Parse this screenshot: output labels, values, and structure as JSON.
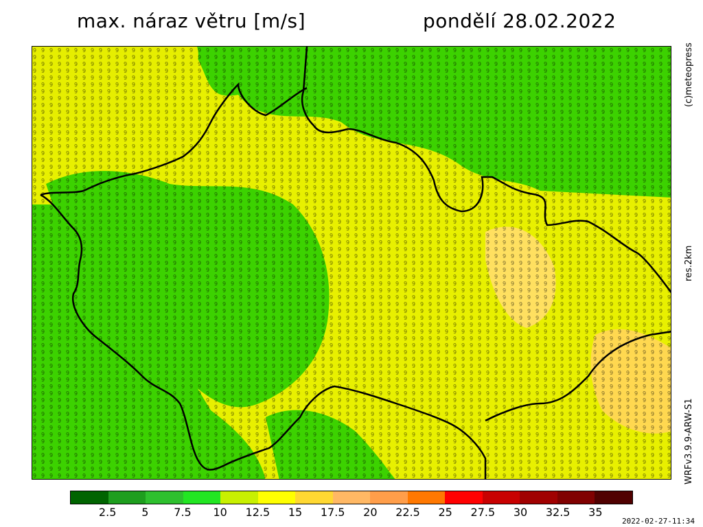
{
  "title": "max. náraz větru [m/s]",
  "date": "pondělí 28.02.2022",
  "side_top": "(c)meteopress",
  "side_mid": "res.2km",
  "side_bottom": "WRFv3.9.9-ARW-S1",
  "timestamp": "2022-02-27-11:34",
  "legend": {
    "ticks": [
      "2.5",
      "5",
      "7.5",
      "10",
      "12.5",
      "15",
      "17.5",
      "20",
      "22.5",
      "25",
      "27.5",
      "30",
      "32.5",
      "35"
    ],
    "colors": [
      "#006400",
      "#1e9e1e",
      "#2ec02e",
      "#22e622",
      "#c8f000",
      "#ffff00",
      "#ffd832",
      "#ffb864",
      "#ff9e4a",
      "#ff7800",
      "#ff0000",
      "#c80000",
      "#a00000",
      "#800000",
      "#500000"
    ]
  },
  "map": {
    "field_description": "maximum wind gust field over Czech Republic with numeric values in m/s",
    "regions": [
      {
        "id": "low-west",
        "value_range": "8-10",
        "color": "#22d400"
      },
      {
        "id": "mid-central",
        "value_range": "10-12",
        "color": "#e4f000"
      },
      {
        "id": "high-east",
        "value_range": "13-17",
        "color": "#ffe640"
      }
    ],
    "border_color": "#000000"
  }
}
